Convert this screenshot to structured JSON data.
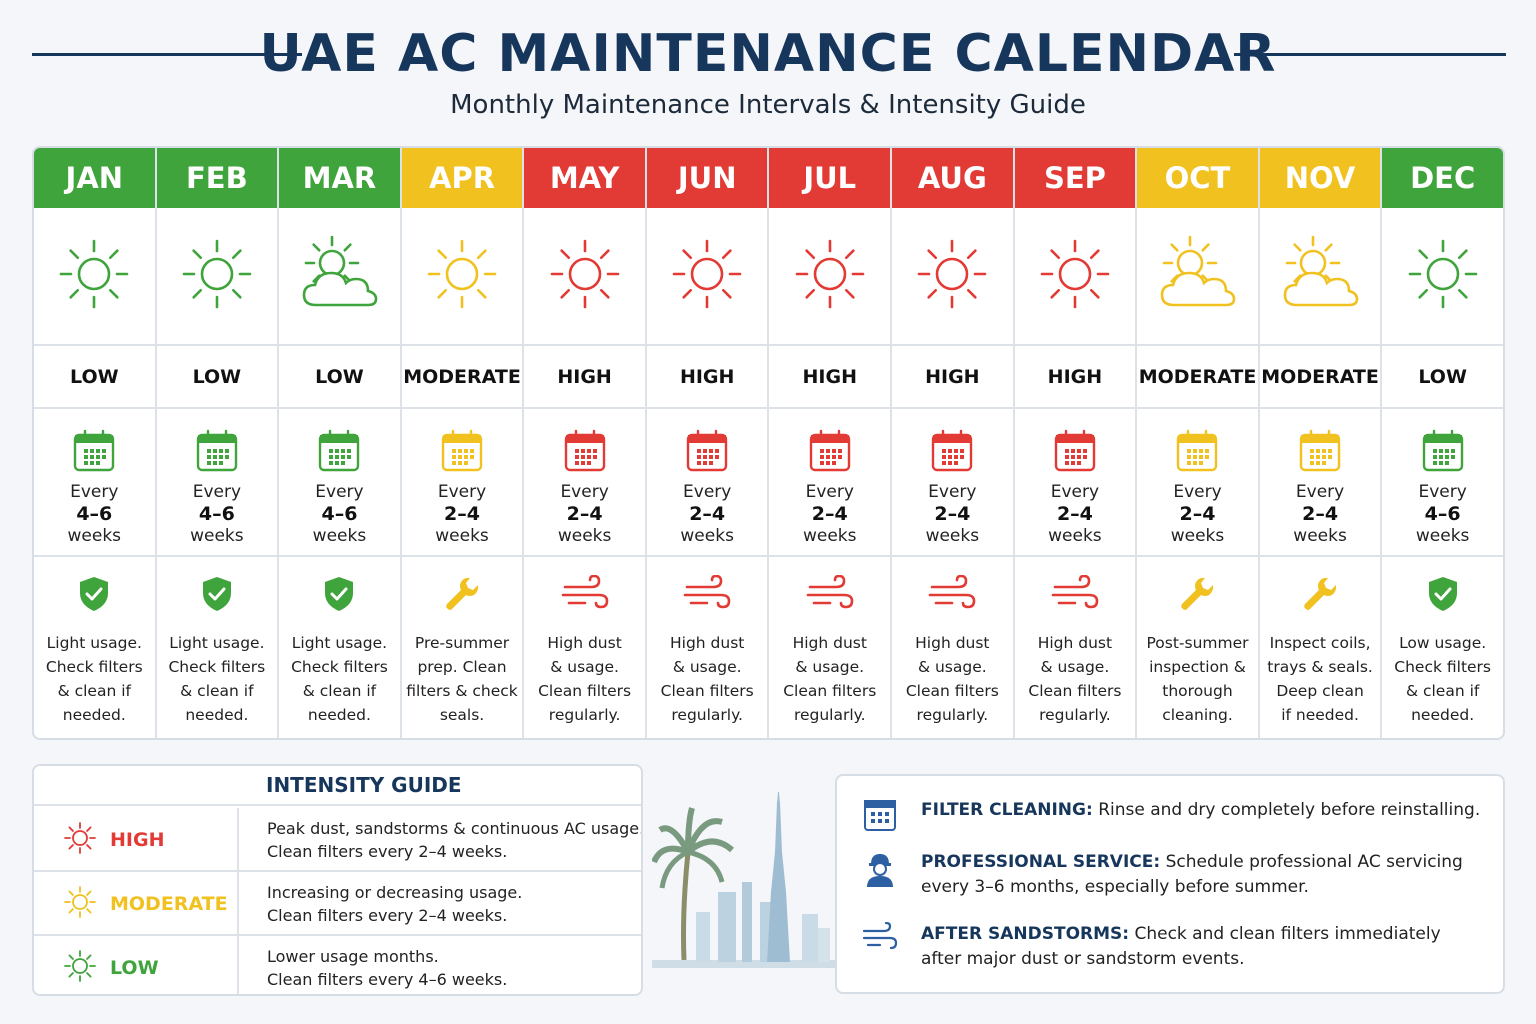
{
  "header": {
    "title": "UAE AC MAINTENANCE CALENDAR",
    "subtitle": "Monthly Maintenance Intervals & Intensity Guide"
  },
  "colors": {
    "high": "#e23a35",
    "moderate": "#f0c11f",
    "low": "#3ea43b",
    "navy": "#16365c"
  },
  "months": [
    {
      "name": "JAN",
      "color": "green",
      "weather": "sun-icon",
      "level": "LOW",
      "every": "Every",
      "range": "4–6",
      "unit": "weeks",
      "note_icon": "shield-check-icon",
      "note": [
        "Light usage.",
        "Check filters",
        "& clean if",
        "needed."
      ]
    },
    {
      "name": "FEB",
      "color": "green",
      "weather": "sun-icon",
      "level": "LOW",
      "every": "Every",
      "range": "4–6",
      "unit": "weeks",
      "note_icon": "shield-check-icon",
      "note": [
        "Light usage.",
        "Check filters",
        "& clean if",
        "needed."
      ]
    },
    {
      "name": "MAR",
      "color": "green",
      "weather": "sun-cloud-icon",
      "level": "LOW",
      "every": "Every",
      "range": "4–6",
      "unit": "weeks",
      "note_icon": "shield-check-icon",
      "note": [
        "Light usage.",
        "Check filters",
        "& clean if",
        "needed."
      ]
    },
    {
      "name": "APR",
      "color": "yellow",
      "weather": "sun-icon",
      "level": "MODERATE",
      "every": "Every",
      "range": "2–4",
      "unit": "weeks",
      "note_icon": "wrench-icon",
      "note": [
        "Pre-summer",
        "prep. Clean",
        "filters & check",
        "seals."
      ]
    },
    {
      "name": "MAY",
      "color": "red",
      "weather": "sun-icon",
      "level": "HIGH",
      "every": "Every",
      "range": "2–4",
      "unit": "weeks",
      "note_icon": "wind-icon",
      "note": [
        "High dust",
        "& usage.",
        "Clean filters",
        "regularly."
      ]
    },
    {
      "name": "JUN",
      "color": "red",
      "weather": "sun-icon",
      "level": "HIGH",
      "every": "Every",
      "range": "2–4",
      "unit": "weeks",
      "note_icon": "wind-icon",
      "note": [
        "High dust",
        "& usage.",
        "Clean filters",
        "regularly."
      ]
    },
    {
      "name": "JUL",
      "color": "red",
      "weather": "sun-icon",
      "level": "HIGH",
      "every": "Every",
      "range": "2–4",
      "unit": "weeks",
      "note_icon": "wind-icon",
      "note": [
        "High dust",
        "& usage.",
        "Clean filters",
        "regularly."
      ]
    },
    {
      "name": "AUG",
      "color": "red",
      "weather": "sun-icon",
      "level": "HIGH",
      "every": "Every",
      "range": "2–4",
      "unit": "weeks",
      "note_icon": "wind-icon",
      "note": [
        "High dust",
        "& usage.",
        "Clean filters",
        "regularly."
      ]
    },
    {
      "name": "SEP",
      "color": "red",
      "weather": "sun-icon",
      "level": "HIGH",
      "every": "Every",
      "range": "2–4",
      "unit": "weeks",
      "note_icon": "wind-icon",
      "note": [
        "High dust",
        "& usage.",
        "Clean filters",
        "regularly."
      ]
    },
    {
      "name": "OCT",
      "color": "yellow",
      "weather": "sun-cloud-icon",
      "level": "MODERATE",
      "every": "Every",
      "range": "2–4",
      "unit": "weeks",
      "note_icon": "wrench-icon",
      "note": [
        "Post-summer",
        "inspection &",
        "thorough",
        "cleaning."
      ]
    },
    {
      "name": "NOV",
      "color": "yellow",
      "weather": "sun-cloud-icon",
      "level": "MODERATE",
      "every": "Every",
      "range": "2–4",
      "unit": "weeks",
      "note_icon": "wrench-icon",
      "note": [
        "Inspect coils,",
        "trays & seals.",
        "Deep clean",
        "if needed."
      ]
    },
    {
      "name": "DEC",
      "color": "green",
      "weather": "sun-icon",
      "level": "LOW",
      "every": "Every",
      "range": "4–6",
      "unit": "weeks",
      "note_icon": "shield-check-icon",
      "note": [
        "Low usage.",
        "Check filters",
        "& clean if",
        "needed."
      ]
    }
  ],
  "guide": {
    "title": "INTENSITY GUIDE",
    "rows": [
      {
        "label": "HIGH",
        "color": "red",
        "line1": "Peak dust, sandstorms & continuous AC usage.",
        "line2": "Clean filters every 2–4 weeks."
      },
      {
        "label": "MODERATE",
        "color": "yellow",
        "line1": "Increasing or decreasing usage.",
        "line2": "Clean filters every 2–4 weeks."
      },
      {
        "label": "LOW",
        "color": "green",
        "line1": "Lower usage months.",
        "line2": "Clean filters every 4–6 weeks."
      }
    ]
  },
  "tips": [
    {
      "icon": "calendar-icon",
      "title": "FILTER CLEANING:",
      "text": " Rinse and dry completely before reinstalling.",
      "text2": ""
    },
    {
      "icon": "technician-icon",
      "title": "PROFESSIONAL SERVICE:",
      "text": " Schedule professional AC servicing",
      "text2": "every 3–6 months, especially before summer."
    },
    {
      "icon": "wind-icon",
      "title": "AFTER SANDSTORMS:",
      "text": " Check and clean filters immediately",
      "text2": "after major dust or sandstorm events."
    }
  ]
}
